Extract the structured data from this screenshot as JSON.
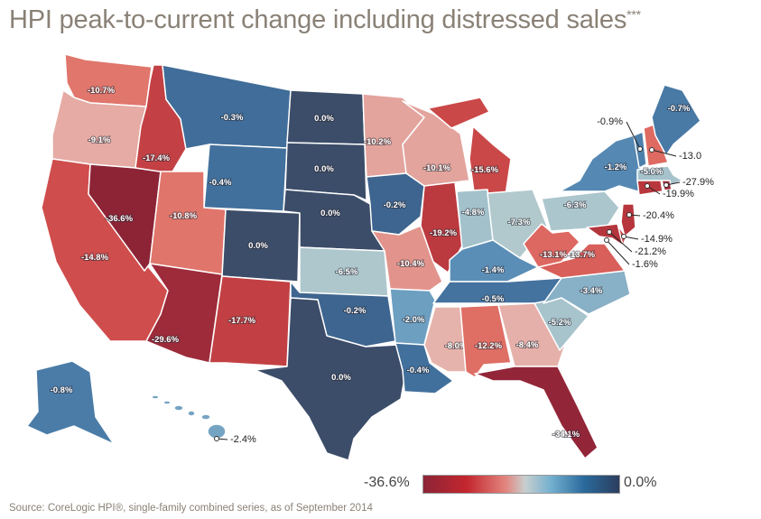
{
  "title": "HPI peak-to-current change including distressed sales",
  "title_mark": "***",
  "legend": {
    "min_label": "-36.6%",
    "max_label": "0.0%"
  },
  "source": "Source: CoreLogic HPI®, single-family combined series, as of September 2014",
  "chart_data": {
    "type": "choropleth",
    "color_scale": [
      "#8c2436",
      "#c3262e",
      "#e3857e",
      "#c7cfcf",
      "#74b0cf",
      "#2a6a9c",
      "#2c3e5e"
    ],
    "range": [
      -36.6,
      0.0
    ],
    "states": [
      {
        "id": "WA",
        "label": "-10.7%",
        "value": -10.7
      },
      {
        "id": "OR",
        "label": "-9.1%",
        "value": -9.1
      },
      {
        "id": "CA",
        "label": "-14.8%",
        "value": -14.8
      },
      {
        "id": "NV",
        "label": "-36.6%",
        "value": -36.6
      },
      {
        "id": "ID",
        "label": "-17.4%",
        "value": -17.4
      },
      {
        "id": "MT",
        "label": "-0.3%",
        "value": -0.3
      },
      {
        "id": "WY",
        "label": "-0.4%",
        "value": -0.4
      },
      {
        "id": "UT",
        "label": "-10.8%",
        "value": -10.8
      },
      {
        "id": "CO",
        "label": "0.0%",
        "value": 0.0
      },
      {
        "id": "AZ",
        "label": "-29.6%",
        "value": -29.6
      },
      {
        "id": "NM",
        "label": "-17.7%",
        "value": -17.7
      },
      {
        "id": "ND",
        "label": "0.0%",
        "value": 0.0
      },
      {
        "id": "SD",
        "label": "0.0%",
        "value": 0.0
      },
      {
        "id": "NE",
        "label": "0.0%",
        "value": 0.0
      },
      {
        "id": "KS",
        "label": "-6.5%",
        "value": -6.5
      },
      {
        "id": "OK",
        "label": "-0.2%",
        "value": -0.2
      },
      {
        "id": "TX",
        "label": "0.0%",
        "value": 0.0
      },
      {
        "id": "MN",
        "label": "-10.2%",
        "value": -10.2
      },
      {
        "id": "IA",
        "label": "-0.2%",
        "value": -0.2
      },
      {
        "id": "MO",
        "label": "-10.4%",
        "value": -10.4
      },
      {
        "id": "AR",
        "label": "-2.0%",
        "value": -2.0
      },
      {
        "id": "LA",
        "label": "-0.4%",
        "value": -0.4
      },
      {
        "id": "WI",
        "label": "-10.1%",
        "value": -10.1
      },
      {
        "id": "IL",
        "label": "-19.2%",
        "value": -19.2
      },
      {
        "id": "MI",
        "label": "-15.6%",
        "value": -15.6
      },
      {
        "id": "IN",
        "label": "-4.8%",
        "value": -4.8
      },
      {
        "id": "OH",
        "label": "-7.3%",
        "value": -7.3
      },
      {
        "id": "KY",
        "label": "-1.4%",
        "value": -1.4
      },
      {
        "id": "TN",
        "label": "-0.5%",
        "value": -0.5
      },
      {
        "id": "MS",
        "label": "-8.0%",
        "value": -8.0
      },
      {
        "id": "AL",
        "label": "-12.2%",
        "value": -12.2
      },
      {
        "id": "GA",
        "label": "-8.4%",
        "value": -8.4
      },
      {
        "id": "FL",
        "label": "-34.1%",
        "value": -34.1
      },
      {
        "id": "SC",
        "label": "-5.2%",
        "value": -5.2
      },
      {
        "id": "NC",
        "label": "-3.4%",
        "value": -3.4
      },
      {
        "id": "VA",
        "label": "-13.7%",
        "value": -13.7
      },
      {
        "id": "WV",
        "label": "-13.1%",
        "value": -13.1
      },
      {
        "id": "PA",
        "label": "-6.3%",
        "value": -6.3
      },
      {
        "id": "NY",
        "label": "-1.2%",
        "value": -1.2
      },
      {
        "id": "ME",
        "label": "-0.7%",
        "value": -0.7
      },
      {
        "id": "MA",
        "label": "-5.0%",
        "value": -5.0
      },
      {
        "id": "VT",
        "label": "-0.9%",
        "value": -0.9
      },
      {
        "id": "NH",
        "label": "-13.0",
        "value": -13.0
      },
      {
        "id": "RI",
        "label": "-27.9%",
        "value": -27.9
      },
      {
        "id": "CT",
        "label": "-19.9%",
        "value": -19.9
      },
      {
        "id": "NJ",
        "label": "-20.4%",
        "value": -20.4
      },
      {
        "id": "DE",
        "label": "-14.9%",
        "value": -14.9
      },
      {
        "id": "MD",
        "label": "-21.2%",
        "value": -21.2
      },
      {
        "id": "DC",
        "label": "-1.6%",
        "value": -1.6
      },
      {
        "id": "AK",
        "label": "-0.8%",
        "value": -0.8
      },
      {
        "id": "HI",
        "label": "-2.4%",
        "value": -2.4
      }
    ]
  }
}
